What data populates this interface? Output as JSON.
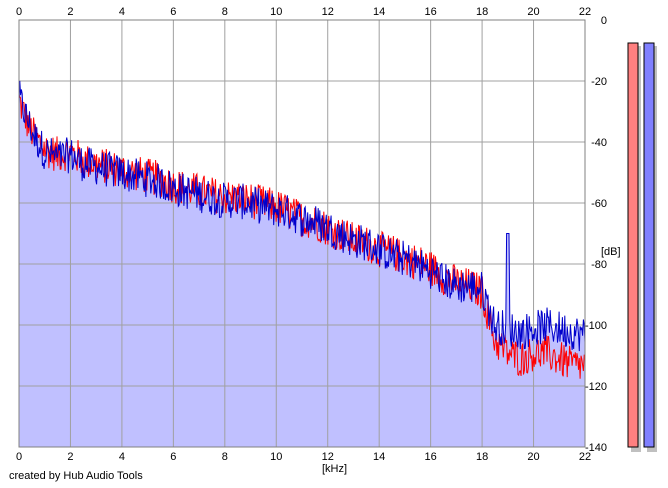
{
  "credit": "created by Hub Audio Tools",
  "chart_data": {
    "type": "area",
    "xlabel": "[kHz]",
    "ylabel": "[dB]",
    "xlim": [
      0,
      22
    ],
    "ylim": [
      -140,
      0
    ],
    "x_ticks": [
      "0",
      "2",
      "4",
      "6",
      "8",
      "10",
      "12",
      "14",
      "16",
      "18",
      "20",
      "22"
    ],
    "y_ticks": [
      "0",
      "-20",
      "-40",
      "-60",
      "-80",
      "-100",
      "-120",
      "-140"
    ],
    "grid": true,
    "colors": {
      "left": "#ff0000",
      "right": "#0000cc",
      "fill": "#c0c0ff",
      "grid": "#a0a0a0"
    },
    "series": [
      {
        "channel": "left",
        "x": [
          0,
          0.3,
          0.6,
          1,
          1.5,
          2,
          2.5,
          3,
          3.5,
          4,
          4.5,
          5,
          5.5,
          6,
          6.5,
          7,
          7.5,
          8,
          8.5,
          9,
          9.5,
          10,
          10.5,
          11,
          11.5,
          12,
          12.5,
          13,
          13.5,
          14,
          14.5,
          15,
          15.5,
          16,
          16.5,
          17,
          17.5,
          18,
          18.5,
          19,
          19.5,
          20,
          20.5,
          21,
          21.5,
          22
        ],
        "y": [
          -25,
          -32,
          -37,
          -41,
          -43,
          -42,
          -45,
          -46,
          -47,
          -48,
          -49,
          -50,
          -51,
          -53,
          -54,
          -55,
          -56,
          -57,
          -57,
          -58,
          -59,
          -60,
          -62,
          -64,
          -65,
          -67,
          -69,
          -71,
          -72,
          -74,
          -75,
          -77,
          -78,
          -80,
          -83,
          -85,
          -86,
          -88,
          -104,
          -108,
          -110,
          -108,
          -108,
          -110,
          -112,
          -112
        ]
      },
      {
        "channel": "right",
        "x": [
          0,
          0.3,
          0.6,
          1,
          1.5,
          2,
          2.5,
          3,
          3.5,
          4,
          4.5,
          5,
          5.5,
          6,
          6.5,
          7,
          7.5,
          8,
          8.5,
          9,
          9.5,
          10,
          10.5,
          11,
          11.5,
          12,
          12.5,
          13,
          13.5,
          14,
          14.5,
          15,
          15.5,
          16,
          16.5,
          17,
          17.5,
          18,
          18.5,
          19,
          19.5,
          20,
          20.5,
          21,
          21.5,
          22
        ],
        "y": [
          -24,
          -31,
          -37,
          -42,
          -44,
          -43,
          -46,
          -47,
          -48,
          -49,
          -50,
          -51,
          -52,
          -54,
          -55,
          -56,
          -57,
          -58,
          -58,
          -59,
          -60,
          -61,
          -62,
          -64,
          -65,
          -67,
          -69,
          -71,
          -72,
          -74,
          -76,
          -77,
          -79,
          -81,
          -84,
          -86,
          -86,
          -87,
          -99,
          -100,
          -101,
          -100,
          -99,
          -100,
          -101,
          -102
        ]
      }
    ],
    "peaks": [
      {
        "x": 19.0,
        "y": -70
      }
    ],
    "meters": [
      {
        "channel": "left",
        "color": "#ff8080"
      },
      {
        "channel": "right",
        "color": "#8080ff"
      }
    ]
  }
}
